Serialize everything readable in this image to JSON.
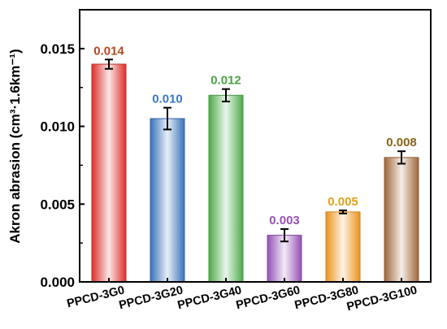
{
  "chart_data": {
    "type": "bar",
    "title": "",
    "xlabel": "",
    "ylabel": "Akron abrasion (cm³·1.6km⁻¹)",
    "ylim": [
      0,
      0.0175
    ],
    "yticks": [
      0.0,
      0.005,
      0.01,
      0.015
    ],
    "ytick_labels": [
      "0.000",
      "0.005",
      "0.010",
      "0.015"
    ],
    "categories": [
      "PPCD-3G0",
      "PPCD-3G20",
      "PPCD-3G40",
      "PPCD-3G60",
      "PPCD-3G80",
      "PPCD-3G100"
    ],
    "values": [
      0.014,
      0.0105,
      0.012,
      0.003,
      0.0045,
      0.008
    ],
    "errors": [
      0.0003,
      0.0007,
      0.0004,
      0.0004,
      0.0001,
      0.0004
    ],
    "data_labels": [
      "0.014",
      "0.010",
      "0.012",
      "0.003",
      "0.005",
      "0.008"
    ],
    "colors": [
      "#e8322d",
      "#3b78c5",
      "#52b24f",
      "#9b55c0",
      "#f59a1e",
      "#a86c3f"
    ],
    "label_colors": [
      "#b3491e",
      "#3a78c4",
      "#4aa545",
      "#9652b3",
      "#e0a21a",
      "#8a6418"
    ],
    "grid": false,
    "legend": "none"
  }
}
